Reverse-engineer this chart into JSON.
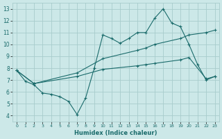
{
  "bg_color": "#cce8e8",
  "grid_color": "#a8cccc",
  "line_color": "#1a6b6b",
  "xlabel": "Humidex (Indice chaleur)",
  "xlim": [
    -0.5,
    23.5
  ],
  "ylim": [
    3.5,
    13.5
  ],
  "xticks": [
    0,
    1,
    2,
    3,
    4,
    5,
    6,
    7,
    8,
    9,
    10,
    11,
    12,
    13,
    14,
    15,
    16,
    17,
    18,
    19,
    20,
    21,
    22,
    23
  ],
  "yticks": [
    4,
    5,
    6,
    7,
    8,
    9,
    10,
    11,
    12,
    13
  ],
  "line1_x": [
    0,
    1,
    2,
    3,
    4,
    5,
    6,
    7,
    8,
    9,
    10,
    11,
    12,
    13,
    14,
    15,
    16,
    17,
    18,
    19,
    20,
    21,
    22,
    23
  ],
  "line1_y": [
    7.8,
    6.9,
    6.6,
    5.9,
    5.8,
    5.6,
    5.2,
    4.1,
    5.5,
    8.0,
    10.8,
    10.5,
    10.1,
    10.5,
    11.0,
    11.0,
    12.2,
    13.0,
    11.8,
    11.5,
    10.0,
    8.3,
    7.0,
    7.3
  ],
  "line2_x": [
    0,
    2,
    7,
    10,
    14,
    15,
    16,
    19,
    20,
    22,
    23
  ],
  "line2_y": [
    7.8,
    6.7,
    7.6,
    8.8,
    9.5,
    9.7,
    10.0,
    10.5,
    10.8,
    11.0,
    11.2
  ],
  "line3_x": [
    0,
    2,
    7,
    10,
    14,
    15,
    16,
    19,
    20,
    22,
    23
  ],
  "line3_y": [
    7.8,
    6.7,
    7.3,
    7.9,
    8.2,
    8.3,
    8.4,
    8.7,
    8.9,
    7.1,
    7.3
  ]
}
